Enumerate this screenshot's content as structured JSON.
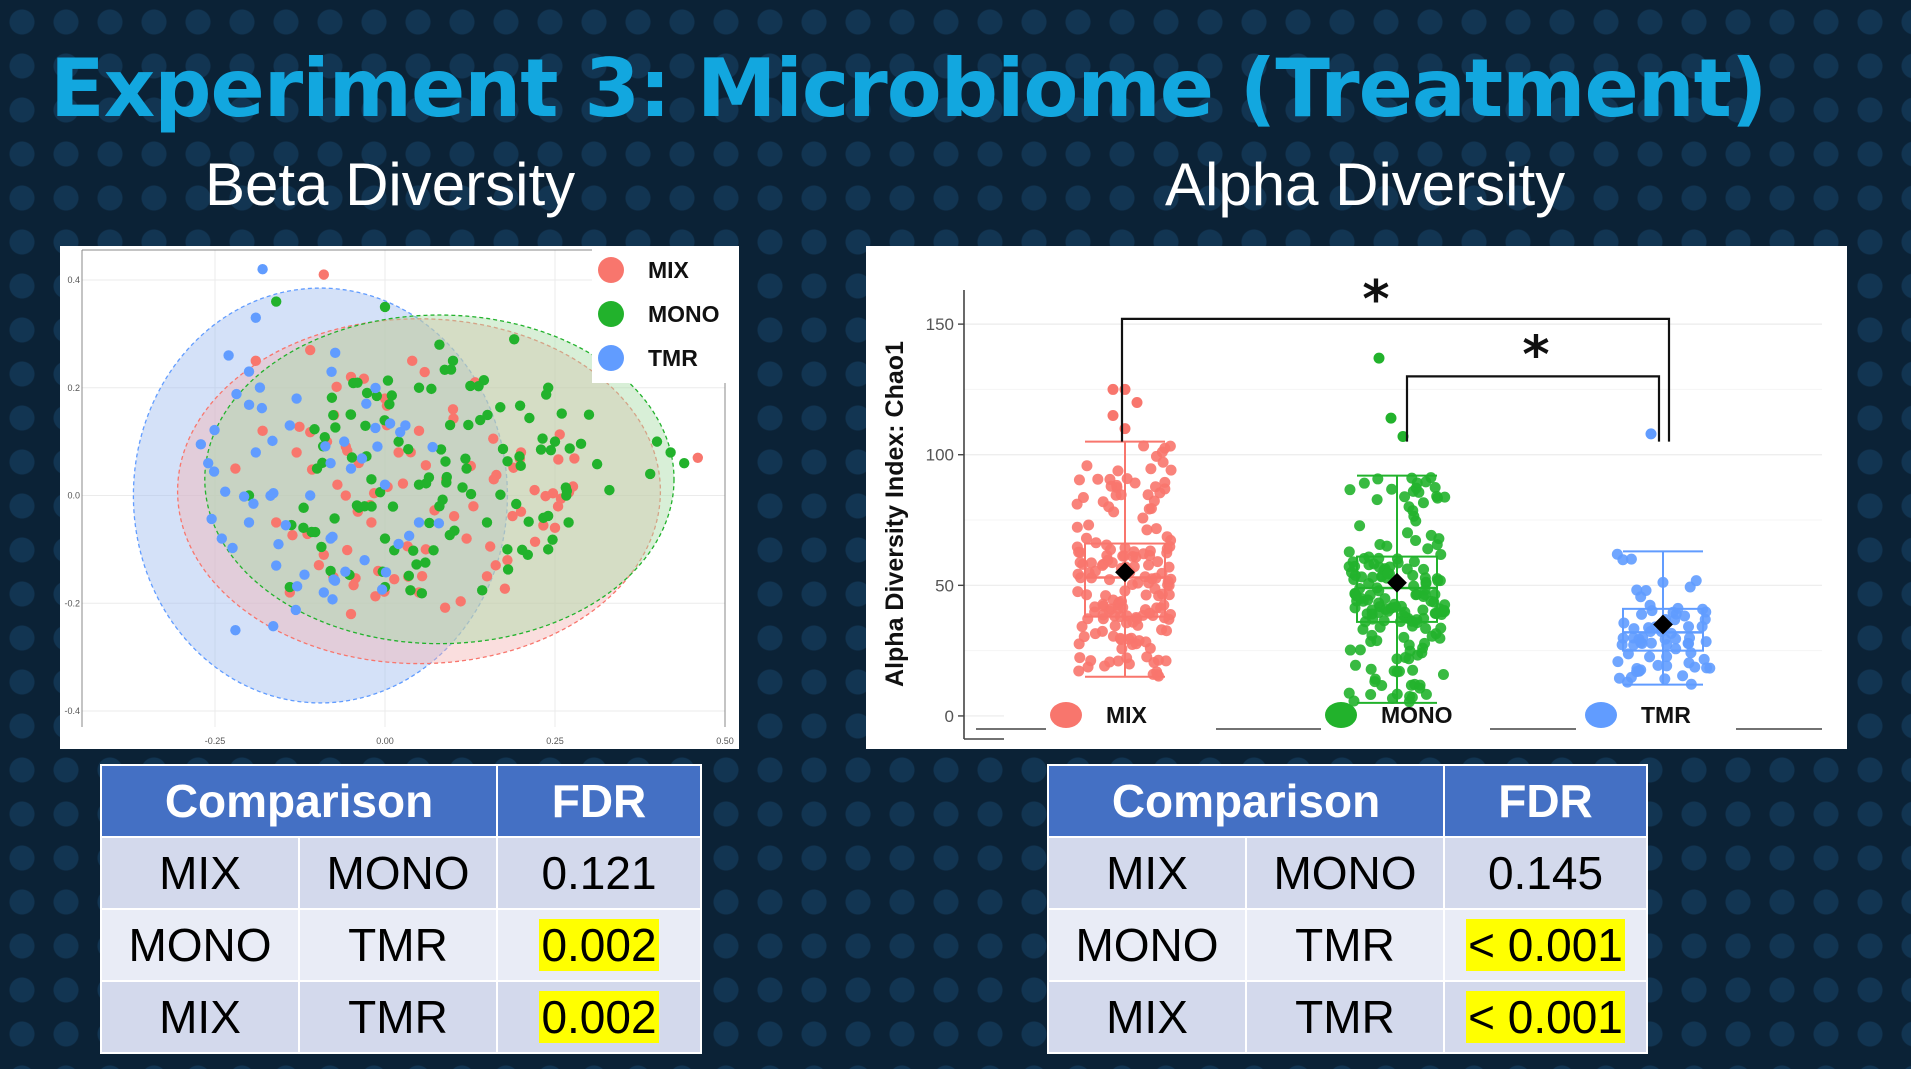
{
  "title": "Experiment 3: Microbiome (Treatment)",
  "beta": {
    "subtitle": "Beta Diversity",
    "table": {
      "headers": [
        "Comparison",
        "FDR"
      ],
      "rows": [
        {
          "a": "MIX",
          "b": "MONO",
          "fdr": "0.121",
          "highlight": false
        },
        {
          "a": "MONO",
          "b": "TMR",
          "fdr": "0.002",
          "highlight": true
        },
        {
          "a": "MIX",
          "b": "TMR",
          "fdr": "0.002",
          "highlight": true
        }
      ]
    }
  },
  "alpha": {
    "subtitle": "Alpha Diversity",
    "table": {
      "headers": [
        "Comparison",
        "FDR"
      ],
      "rows": [
        {
          "a": "MIX",
          "b": "MONO",
          "fdr": "0.145",
          "highlight": false
        },
        {
          "a": "MONO",
          "b": "TMR",
          "fdr": "< 0.001",
          "highlight": true
        },
        {
          "a": "MIX",
          "b": "TMR",
          "fdr": "< 0.001",
          "highlight": true
        }
      ]
    }
  },
  "colors": {
    "MIX": "#f8766d",
    "MONO": "#22b22c",
    "TMR": "#619cff",
    "title": "#12a7df",
    "table_header": "#4470c4",
    "highlight": "#ffff00"
  },
  "chart_data": [
    {
      "type": "scatter",
      "name": "beta-diversity-pcoa",
      "title": "Beta Diversity",
      "xlabel": "",
      "ylabel": "",
      "xlim": [
        -0.4,
        0.5
      ],
      "ylim": [
        -0.4,
        0.4
      ],
      "x_ticks": [
        -0.25,
        0.0,
        0.25,
        0.5
      ],
      "x_tick_labels": [
        "-0.25",
        "0.00",
        "0.25",
        "0.50"
      ],
      "y_ticks": [
        0.4,
        0.2,
        0.0,
        -0.2,
        -0.4
      ],
      "y_tick_labels": [
        "0.4",
        "0.2",
        "0.0",
        "-0.2",
        "-0.4"
      ],
      "legend": [
        "MIX",
        "MONO",
        "TMR"
      ],
      "legend_position": "top-right",
      "ellipses": [
        {
          "group": "TMR",
          "cx": -0.095,
          "cy": 0.0,
          "rx": 0.275,
          "ry": 0.385
        },
        {
          "group": "MIX",
          "cx": 0.05,
          "cy": 0.008,
          "rx": 0.355,
          "ry": 0.32
        },
        {
          "group": "MONO",
          "cx": 0.08,
          "cy": 0.03,
          "rx": 0.345,
          "ry": 0.305
        }
      ],
      "series": [
        {
          "name": "MIX",
          "points": [
            [
              -0.09,
              0.41
            ],
            [
              -0.11,
              0.27
            ],
            [
              -0.19,
              0.25
            ],
            [
              -0.22,
              0.05
            ],
            [
              -0.05,
              0.22
            ],
            [
              0.0,
              0.18
            ],
            [
              0.05,
              0.12
            ],
            [
              0.09,
              0.03
            ],
            [
              0.13,
              -0.02
            ],
            [
              0.16,
              0.03
            ],
            [
              -0.02,
              -0.05
            ],
            [
              -0.09,
              -0.11
            ],
            [
              -0.14,
              -0.18
            ],
            [
              -0.05,
              -0.22
            ],
            [
              0.05,
              -0.18
            ],
            [
              0.12,
              -0.08
            ],
            [
              0.2,
              -0.03
            ],
            [
              0.22,
              0.01
            ],
            [
              0.25,
              -0.06
            ],
            [
              0.18,
              -0.12
            ],
            [
              -0.18,
              0.12
            ],
            [
              -0.13,
              0.08
            ],
            [
              -0.07,
              0.02
            ],
            [
              0.02,
              0.08
            ],
            [
              0.06,
              -0.1
            ],
            [
              -0.01,
              -0.14
            ],
            [
              0.15,
              -0.15
            ],
            [
              0.2,
              0.08
            ],
            [
              0.46,
              0.07
            ],
            [
              -0.16,
              -0.05
            ],
            [
              0.1,
              0.16
            ],
            [
              -0.04,
              -0.03
            ],
            [
              0.04,
              0.25
            ]
          ]
        },
        {
          "name": "MONO",
          "points": [
            [
              -0.16,
              0.36
            ],
            [
              0.0,
              0.35
            ],
            [
              0.19,
              0.29
            ],
            [
              0.24,
              0.2
            ],
            [
              0.3,
              0.15
            ],
            [
              0.42,
              0.08
            ],
            [
              0.39,
              0.04
            ],
            [
              0.33,
              0.01
            ],
            [
              0.27,
              -0.05
            ],
            [
              0.18,
              -0.1
            ],
            [
              0.1,
              0.25
            ],
            [
              0.05,
              0.2
            ],
            [
              -0.05,
              0.15
            ],
            [
              -0.1,
              0.05
            ],
            [
              -0.03,
              -0.02
            ],
            [
              0.05,
              0.02
            ],
            [
              0.12,
              0.05
            ],
            [
              0.15,
              -0.05
            ],
            [
              0.21,
              -0.11
            ],
            [
              -0.14,
              -0.17
            ],
            [
              -0.08,
              -0.14
            ],
            [
              0.0,
              -0.08
            ],
            [
              0.08,
              -0.02
            ],
            [
              -0.2,
              0.0
            ],
            [
              -0.12,
              -0.06
            ],
            [
              0.02,
              0.1
            ],
            [
              0.08,
              0.28
            ],
            [
              0.14,
              0.14
            ],
            [
              0.25,
              0.1
            ],
            [
              0.24,
              -0.1
            ],
            [
              0.44,
              0.06
            ],
            [
              0.4,
              0.1
            ],
            [
              -0.02,
              0.03
            ],
            [
              0.0,
              -0.17
            ]
          ]
        },
        {
          "name": "TMR",
          "points": [
            [
              -0.18,
              0.42
            ],
            [
              -0.19,
              0.33
            ],
            [
              -0.23,
              0.26
            ],
            [
              -0.2,
              0.23
            ],
            [
              -0.26,
              0.06
            ],
            [
              -0.24,
              -0.08
            ],
            [
              -0.2,
              -0.05
            ],
            [
              -0.22,
              -0.25
            ],
            [
              -0.14,
              0.13
            ],
            [
              -0.11,
              0.0
            ],
            [
              -0.08,
              -0.08
            ],
            [
              -0.05,
              0.05
            ],
            [
              0.0,
              0.02
            ],
            [
              -0.03,
              -0.12
            ],
            [
              -0.16,
              -0.13
            ],
            [
              0.03,
              0.13
            ],
            [
              0.05,
              -0.05
            ],
            [
              -0.13,
              0.18
            ],
            [
              -0.09,
              -0.18
            ],
            [
              0.07,
              0.09
            ],
            [
              -0.06,
              0.1
            ],
            [
              -0.19,
              0.08
            ],
            [
              -0.08,
              0.06
            ],
            [
              0.02,
              -0.09
            ]
          ]
        }
      ]
    },
    {
      "type": "box",
      "name": "alpha-diversity-chao1",
      "title": "Alpha Diversity",
      "ylabel": "Alpha Diversity Index: Chao1",
      "xlabel": "",
      "categories": [
        "MIX",
        "MONO",
        "TMR"
      ],
      "ylim": [
        -5,
        160
      ],
      "y_ticks": [
        0,
        50,
        100,
        150
      ],
      "y_tick_labels": [
        "0",
        "50",
        "100",
        "150"
      ],
      "legend": [
        "MIX",
        "MONO",
        "TMR"
      ],
      "legend_position": "bottom",
      "boxes": [
        {
          "name": "MIX",
          "whisker_low": 15,
          "q1": 38,
          "median": 53,
          "q3": 66,
          "whisker_high": 105,
          "mean": 55,
          "outliers": [
            125,
            125,
            120,
            115,
            110
          ]
        },
        {
          "name": "MONO",
          "whisker_low": 5,
          "q1": 36,
          "median": 49,
          "q3": 61,
          "whisker_high": 92,
          "mean": 51,
          "outliers": [
            137,
            114,
            107
          ]
        },
        {
          "name": "TMR",
          "whisker_low": 12,
          "q1": 25,
          "median": 32,
          "q3": 41,
          "whisker_high": 63,
          "mean": 35,
          "outliers": [
            108
          ]
        }
      ],
      "annotations": [
        {
          "label": "*",
          "from": "MIX",
          "to": "TMR",
          "y": 152
        },
        {
          "label": "*",
          "from": "MONO",
          "to": "TMR",
          "y": 130
        }
      ]
    }
  ]
}
